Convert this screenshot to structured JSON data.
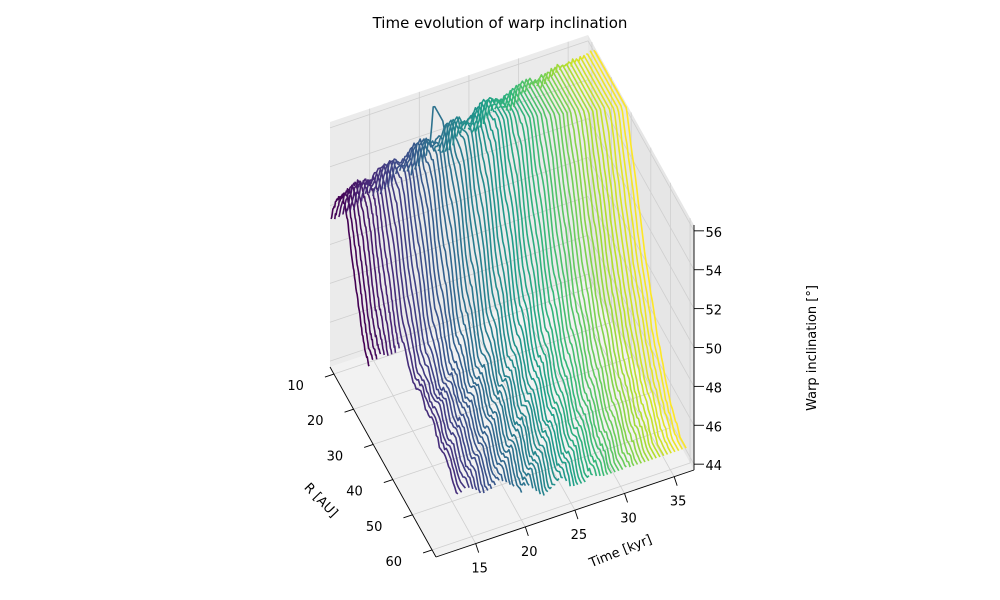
{
  "chart_data": {
    "type": "3d-line",
    "title": "Time evolution of warp inclination",
    "xlabel": "R [AU]",
    "ylabel": "Time [kyr]",
    "zlabel": "Warp inclination [°]",
    "xlim": [
      8,
      62
    ],
    "ylim": [
      11,
      37
    ],
    "zlim": [
      43.7,
      56.3
    ],
    "x_ticks": [
      10,
      20,
      30,
      40,
      50,
      60
    ],
    "y_ticks": [
      15,
      20,
      25,
      30,
      35
    ],
    "z_ticks": [
      44,
      46,
      48,
      50,
      52,
      54,
      56
    ],
    "grid": true,
    "colormap": "viridis",
    "colormap_stops": [
      "#440154",
      "#482878",
      "#3e4989",
      "#31688e",
      "#26828e",
      "#1f9e89",
      "#35b779",
      "#6ece58",
      "#b5de2b",
      "#fde725"
    ],
    "time_range": [
      11,
      37
    ],
    "num_curves": 70
  }
}
